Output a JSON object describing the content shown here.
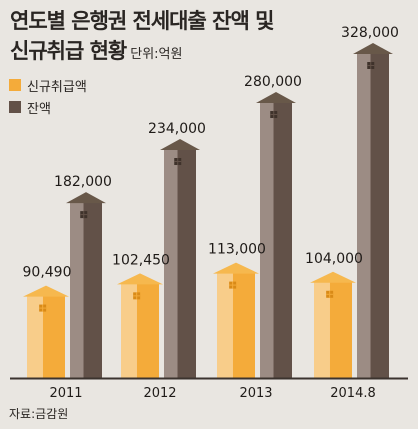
{
  "header": {
    "title_line1": "연도별 은행권 전세대출 잔액 및",
    "title_line2": "신규취급 현황",
    "unit": "단위:억원"
  },
  "source": "자료:금감원",
  "colors": {
    "background": "#e9e6e1",
    "new_front": "#f4ab3a",
    "new_light": "#f8cd8a",
    "new_roof": "#f6b84e",
    "bal_front": "#625148",
    "bal_side": "#9c8c84",
    "bal_roof": "#685849"
  },
  "chart_data": {
    "type": "bar",
    "categories": [
      "2011",
      "2012",
      "2013",
      "2014.8"
    ],
    "series": [
      {
        "name": "신규취급액",
        "values": [
          90490,
          102450,
          113000,
          104000
        ],
        "labels": [
          "90,490",
          "102,450",
          "113,000",
          "104,000"
        ]
      },
      {
        "name": "잔액",
        "values": [
          182000,
          234000,
          280000,
          328000
        ],
        "labels": [
          "182,000",
          "234,000",
          "280,000",
          "328,000"
        ]
      }
    ],
    "ylim": [
      0,
      328000
    ]
  }
}
